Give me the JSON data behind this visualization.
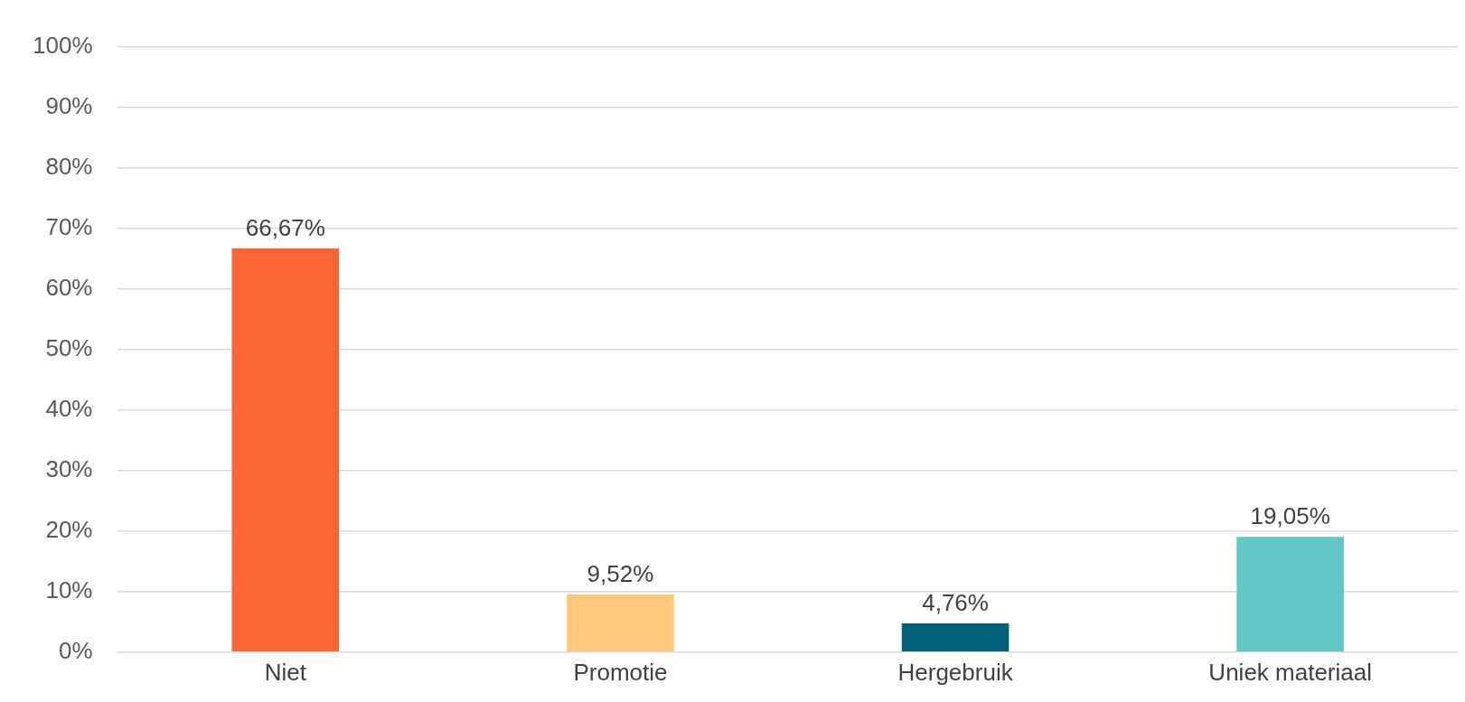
{
  "chart_data": {
    "type": "bar",
    "categories": [
      "Niet",
      "Promotie",
      "Hergebruik",
      "Uniek materiaal"
    ],
    "values": [
      66.67,
      9.52,
      4.76,
      19.05
    ],
    "colors": [
      "#fc6535",
      "#fec87e",
      "#006078",
      "#62c8c7"
    ],
    "value_labels": [
      "66,67%",
      "9,52%",
      "4,76%",
      "19,05%"
    ],
    "ylim": [
      0,
      100
    ],
    "yticks": [
      {
        "value": 0,
        "label": "0%"
      },
      {
        "value": 10,
        "label": "10%"
      },
      {
        "value": 20,
        "label": "20%"
      },
      {
        "value": 30,
        "label": "30%"
      },
      {
        "value": 40,
        "label": "40%"
      },
      {
        "value": 50,
        "label": "50%"
      },
      {
        "value": 60,
        "label": "60%"
      },
      {
        "value": 70,
        "label": "70%"
      },
      {
        "value": 80,
        "label": "80%"
      },
      {
        "value": 90,
        "label": "90%"
      },
      {
        "value": 100,
        "label": "100%"
      }
    ],
    "grid": "y",
    "legend": false
  }
}
